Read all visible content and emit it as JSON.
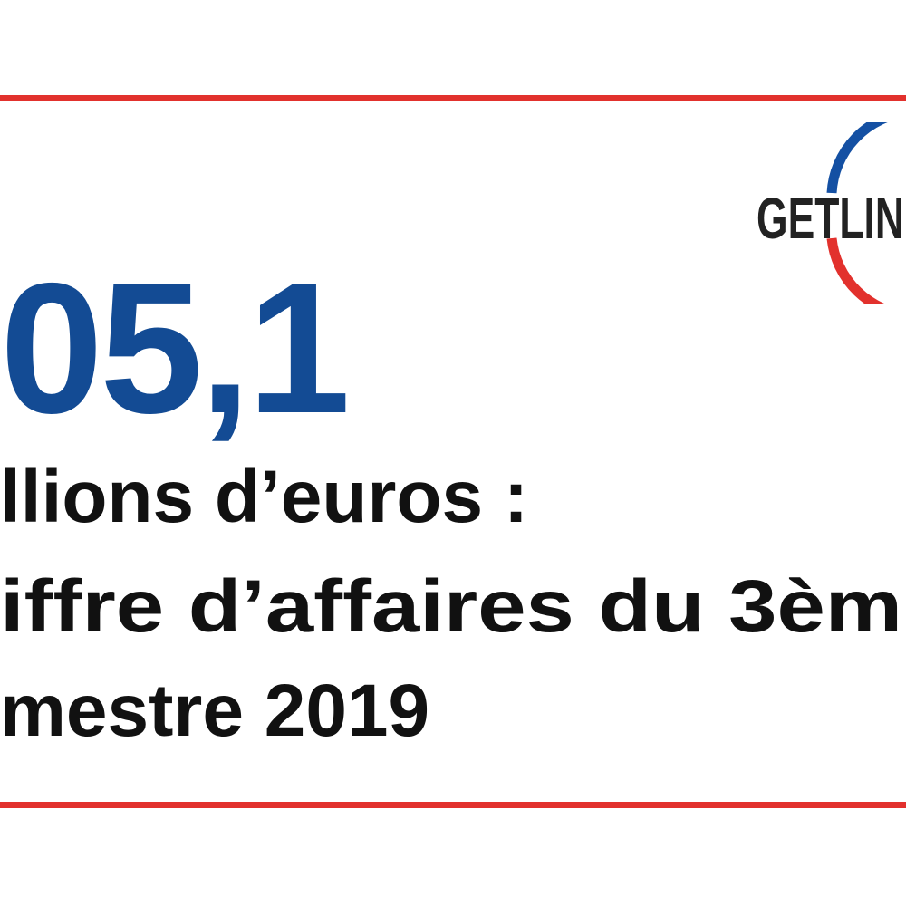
{
  "colors": {
    "accent_red": "#e2312d",
    "number_blue": "#134b94",
    "logo_blue": "#1450a3",
    "text": "#111111"
  },
  "headline": {
    "amount": "05,1",
    "lines": [
      "llions d’euros :",
      "iffre d’affaires du 3èm",
      "mestre 2019"
    ]
  },
  "logo": {
    "text": "GETLIN",
    "icon": "getlink-logo"
  }
}
